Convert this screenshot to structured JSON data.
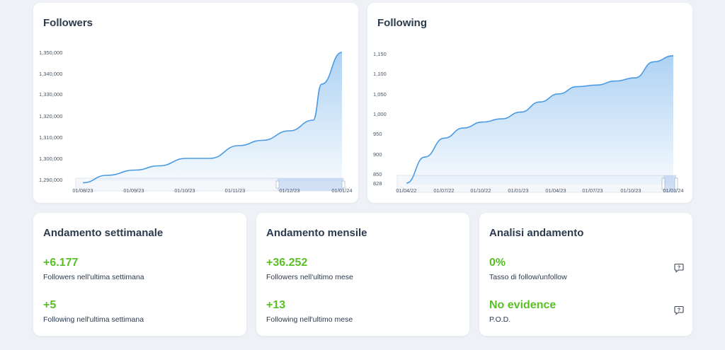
{
  "followers_card": {
    "title": "Followers"
  },
  "following_card": {
    "title": "Following"
  },
  "chart_data": [
    {
      "type": "area",
      "title": "Followers",
      "y_ticks": [
        "1,290,000",
        "1,300,000",
        "1,310,000",
        "1,320,000",
        "1,330,000",
        "1,340,000",
        "1,350,000"
      ],
      "x_ticks": [
        "01/08/23",
        "01/09/23",
        "01/10/23",
        "01/11/23",
        "01/12/23",
        "01/01/24"
      ],
      "ylim": [
        1288000,
        1352000
      ],
      "series": [
        {
          "x": [
            "01/08/23",
            "15/08/23",
            "01/09/23",
            "15/09/23",
            "01/10/23",
            "15/10/23",
            "01/11/23",
            "15/11/23",
            "01/12/23",
            "15/12/23",
            "20/12/23",
            "01/01/24"
          ],
          "values": [
            1288500,
            1292000,
            1294500,
            1296500,
            1300000,
            1300000,
            1306000,
            1308500,
            1313000,
            1318000,
            1335000,
            1350000
          ]
        }
      ],
      "grid": false,
      "color": "#4a9be4"
    },
    {
      "type": "area",
      "title": "Following",
      "y_ticks": [
        "828",
        "850",
        "900",
        "950",
        "1,000",
        "1,050",
        "1,100",
        "1,150"
      ],
      "x_ticks": [
        "01/04/22",
        "01/07/22",
        "01/10/22",
        "01/01/23",
        "01/04/23",
        "01/07/23",
        "01/10/23",
        "01/01/24"
      ],
      "ylim": [
        828,
        1160
      ],
      "series": [
        {
          "x": [
            "01/04/22",
            "15/05/22",
            "01/07/22",
            "15/08/22",
            "01/10/22",
            "15/11/22",
            "01/01/23",
            "15/02/23",
            "01/04/23",
            "15/05/23",
            "01/07/23",
            "15/08/23",
            "01/10/23",
            "15/11/23",
            "01/01/24"
          ],
          "values": [
            828,
            893,
            940,
            965,
            980,
            988,
            1005,
            1030,
            1050,
            1068,
            1072,
            1082,
            1090,
            1130,
            1145
          ]
        }
      ],
      "grid": false,
      "color": "#4a9be4"
    }
  ],
  "weekly": {
    "title": "Andamento settimanale",
    "followers_value": "+6.177",
    "followers_label": "Followers nell'ultima settimana",
    "following_value": "+5",
    "following_label": "Following nell'ultima settimana"
  },
  "monthly": {
    "title": "Andamento mensile",
    "followers_value": "+36.252",
    "followers_label": "Followers nell'ultimo mese",
    "following_value": "+13",
    "following_label": "Following nell'ultimo mese"
  },
  "analysis": {
    "title": "Analisi andamento",
    "rate_value": "0%",
    "rate_label": "Tasso di follow/unfollow",
    "pod_value": "No evidence",
    "pod_label": "P.O.D."
  },
  "colors": {
    "accent_green": "#58c025",
    "line_blue": "#4a9be4",
    "title_dark": "#2c3a4d"
  },
  "icons": {
    "help": "question-bubble-icon"
  }
}
